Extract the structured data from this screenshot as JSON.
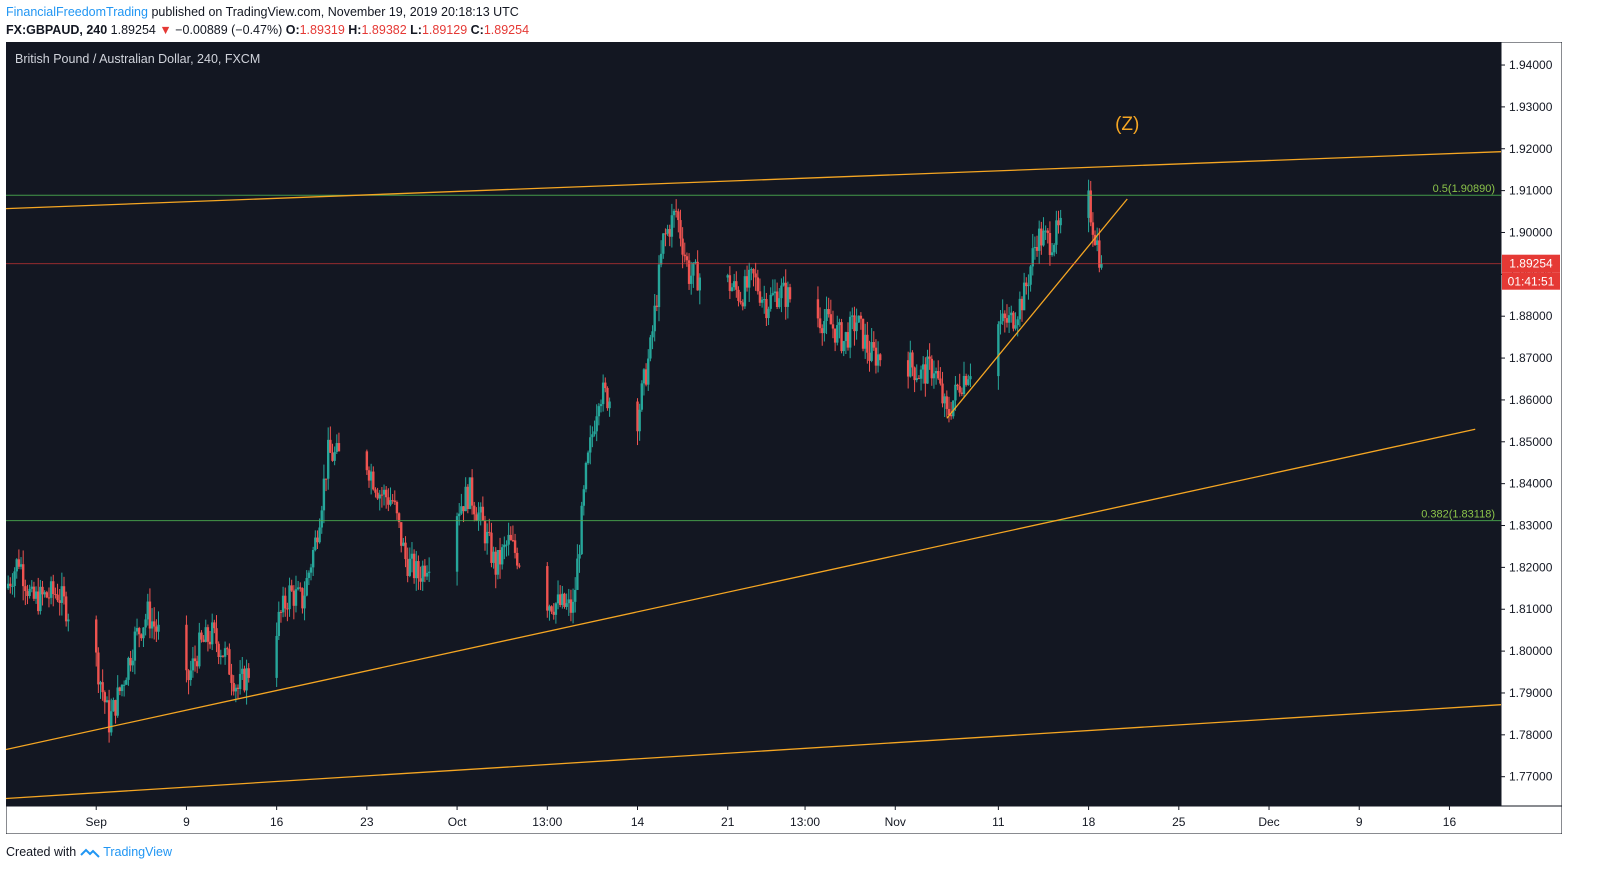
{
  "header": {
    "author": "FinancialFreedomTrading",
    "published_text": "published on TradingView.com, November 19, 2019 20:18:13 UTC",
    "symbol": "FX:GBPAUD, 240",
    "last": "1.89254",
    "down_arrow": "▼",
    "change": "−0.00889 (−0.47%)",
    "o_label": "O:",
    "o_value": "1.89319",
    "h_label": "H:",
    "h_value": "1.89382",
    "l_label": "L:",
    "l_value": "1.89129",
    "c_label": "C:",
    "c_value": "1.89254"
  },
  "footer": {
    "created_with": "Created with",
    "brand": "TradingView"
  },
  "colors": {
    "background": "#131722",
    "up": "#26a69a",
    "down": "#ef5350",
    "trendline": "#f5a623",
    "fib": "#4caf50",
    "fib_label": "#8bc34a",
    "price_line": "#e53935",
    "axis_text": "#131722"
  },
  "chart_data": {
    "type": "candlestick",
    "title": "British Pound / Australian Dollar, 240, FXCM",
    "xlabel": "",
    "ylabel": "",
    "ylim": [
      1.763,
      1.9455
    ],
    "y_ticks": [
      1.77,
      1.78,
      1.79,
      1.8,
      1.81,
      1.82,
      1.83,
      1.84,
      1.85,
      1.86,
      1.87,
      1.88,
      1.89,
      1.9,
      1.91,
      1.92,
      1.93,
      1.94
    ],
    "y_tick_labels": [
      "1.77000",
      "1.78000",
      "1.79000",
      "1.80000",
      "1.81000",
      "1.82000",
      "1.83000",
      "1.84000",
      "1.85000",
      "1.86000",
      "1.87000",
      "1.88000",
      "1.89000",
      "1.90000",
      "1.91000",
      "1.92000",
      "1.93000",
      "1.94000"
    ],
    "x_range": [
      "2019-08-26",
      "2019-12-20"
    ],
    "x_ticks": [
      {
        "label": "Sep",
        "date": "2019-09-02"
      },
      {
        "label": "9",
        "date": "2019-09-09"
      },
      {
        "label": "16",
        "date": "2019-09-16"
      },
      {
        "label": "23",
        "date": "2019-09-23"
      },
      {
        "label": "Oct",
        "date": "2019-09-30"
      },
      {
        "label": "13:00",
        "date": "2019-10-07"
      },
      {
        "label": "14",
        "date": "2019-10-14"
      },
      {
        "label": "21",
        "date": "2019-10-21"
      },
      {
        "label": "13:00",
        "date": "2019-10-27"
      },
      {
        "label": "Nov",
        "date": "2019-11-03"
      },
      {
        "label": "11",
        "date": "2019-11-11"
      },
      {
        "label": "18",
        "date": "2019-11-18"
      },
      {
        "label": "25",
        "date": "2019-11-25"
      },
      {
        "label": "Dec",
        "date": "2019-12-02"
      },
      {
        "label": "9",
        "date": "2019-12-09"
      },
      {
        "label": "16",
        "date": "2019-12-16"
      }
    ],
    "close_path": [
      [
        "2019-08-26",
        1.815
      ],
      [
        "2019-08-27",
        1.822
      ],
      [
        "2019-08-28",
        1.812
      ],
      [
        "2019-08-29",
        1.813
      ],
      [
        "2019-08-30",
        1.814
      ],
      [
        "2019-09-02",
        1.798
      ],
      [
        "2019-09-03",
        1.783
      ],
      [
        "2019-09-04",
        1.792
      ],
      [
        "2019-09-05",
        1.803
      ],
      [
        "2019-09-06",
        1.809
      ],
      [
        "2019-09-09",
        1.792
      ],
      [
        "2019-09-10",
        1.801
      ],
      [
        "2019-09-11",
        1.804
      ],
      [
        "2019-09-12",
        1.799
      ],
      [
        "2019-09-13",
        1.791
      ],
      [
        "2019-09-16",
        1.806
      ],
      [
        "2019-09-17",
        1.814
      ],
      [
        "2019-09-18",
        1.812
      ],
      [
        "2019-09-19",
        1.826
      ],
      [
        "2019-09-20",
        1.847
      ],
      [
        "2019-09-23",
        1.845
      ],
      [
        "2019-09-24",
        1.838
      ],
      [
        "2019-09-25",
        1.836
      ],
      [
        "2019-09-26",
        1.822
      ],
      [
        "2019-09-27",
        1.818
      ],
      [
        "2019-09-30",
        1.834
      ],
      [
        "2019-10-01",
        1.838
      ],
      [
        "2019-10-02",
        1.83
      ],
      [
        "2019-10-03",
        1.82
      ],
      [
        "2019-10-04",
        1.826
      ],
      [
        "2019-10-07",
        1.812
      ],
      [
        "2019-10-08",
        1.811
      ],
      [
        "2019-10-09",
        1.81
      ],
      [
        "2019-10-10",
        1.842
      ],
      [
        "2019-10-11",
        1.862
      ],
      [
        "2019-10-14",
        1.856
      ],
      [
        "2019-10-15",
        1.872
      ],
      [
        "2019-10-16",
        1.898
      ],
      [
        "2019-10-17",
        1.905
      ],
      [
        "2019-10-18",
        1.89
      ],
      [
        "2019-10-21",
        1.888
      ],
      [
        "2019-10-22",
        1.885
      ],
      [
        "2019-10-23",
        1.889
      ],
      [
        "2019-10-24",
        1.883
      ],
      [
        "2019-10-25",
        1.886
      ],
      [
        "2019-10-28",
        1.88
      ],
      [
        "2019-10-29",
        1.878
      ],
      [
        "2019-10-30",
        1.874
      ],
      [
        "2019-10-31",
        1.879
      ],
      [
        "2019-11-01",
        1.871
      ],
      [
        "2019-11-04",
        1.869
      ],
      [
        "2019-11-05",
        1.866
      ],
      [
        "2019-11-06",
        1.868
      ],
      [
        "2019-11-07",
        1.856
      ],
      [
        "2019-11-08",
        1.864
      ],
      [
        "2019-11-11",
        1.878
      ],
      [
        "2019-11-12",
        1.879
      ],
      [
        "2019-11-13",
        1.885
      ],
      [
        "2019-11-14",
        1.899
      ],
      [
        "2019-11-15",
        1.898
      ],
      [
        "2019-11-18",
        1.907
      ],
      [
        "2019-11-19",
        1.8925
      ]
    ],
    "horizontal_levels": [
      {
        "label": "0.5(1.90890)",
        "price": 1.9089
      },
      {
        "label": "0.382(1.83118)",
        "price": 1.83118
      }
    ],
    "trendlines": [
      {
        "from": [
          "2019-08-26",
          1.9057
        ],
        "to": [
          "2019-12-20",
          1.9193
        ]
      },
      {
        "from": [
          "2019-08-26",
          1.7765
        ],
        "to": [
          "2019-12-18",
          1.853
        ]
      },
      {
        "from": [
          "2019-08-26",
          1.7648
        ],
        "to": [
          "2019-12-20",
          1.7872
        ]
      },
      {
        "from": [
          "2019-11-07",
          1.8556
        ],
        "to": [
          "2019-11-21",
          1.908
        ]
      }
    ],
    "annotation": {
      "text": "(Z)",
      "date": "2019-11-21",
      "price": 1.9245
    },
    "current_price": {
      "value": "1.89254",
      "price": 1.89254,
      "countdown": "01:41:51"
    }
  }
}
